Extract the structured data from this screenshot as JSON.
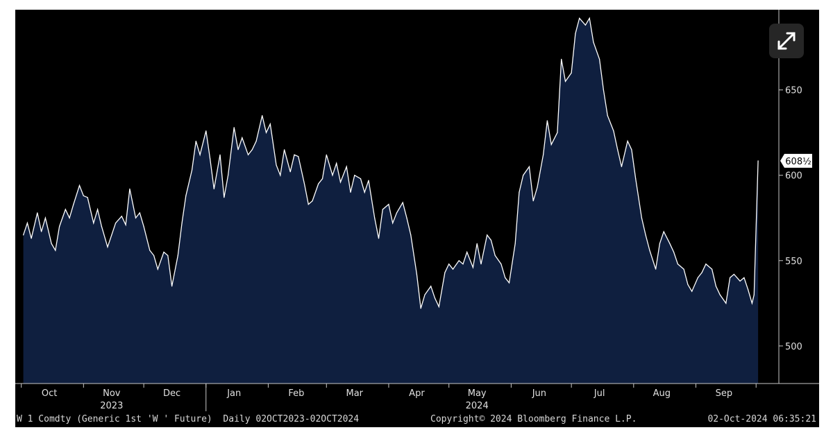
{
  "chart_data": {
    "type": "area",
    "title": "",
    "xlabel": "",
    "ylabel": "",
    "ylim": [
      478,
      697
    ],
    "yticks": [
      500,
      550,
      600,
      650
    ],
    "last_value_label": "608½",
    "x_labels": [
      {
        "label": "Oct",
        "date": "2023-10-15"
      },
      {
        "label": "Nov",
        "date": "2023-11-15"
      },
      {
        "label": "Dec",
        "date": "2023-12-15"
      },
      {
        "label": "Jan",
        "date": "2024-01-15"
      },
      {
        "label": "Feb",
        "date": "2024-02-15"
      },
      {
        "label": "Mar",
        "date": "2024-03-15"
      },
      {
        "label": "Apr",
        "date": "2024-04-15"
      },
      {
        "label": "May",
        "date": "2024-05-15"
      },
      {
        "label": "Jun",
        "date": "2024-06-15"
      },
      {
        "label": "Jul",
        "date": "2024-07-15"
      },
      {
        "label": "Aug",
        "date": "2024-08-15"
      },
      {
        "label": "Sep",
        "date": "2024-09-15"
      }
    ],
    "year_labels": [
      {
        "label": "2023",
        "date": "2023-11-15"
      },
      {
        "label": "2024",
        "date": "2024-05-15"
      }
    ],
    "series": [
      {
        "values": [
          [
            "2023-10-02",
            565
          ],
          [
            "2023-10-04",
            572
          ],
          [
            "2023-10-06",
            563
          ],
          [
            "2023-10-09",
            578
          ],
          [
            "2023-10-11",
            567
          ],
          [
            "2023-10-13",
            575
          ],
          [
            "2023-10-16",
            560
          ],
          [
            "2023-10-18",
            556
          ],
          [
            "2023-10-20",
            570
          ],
          [
            "2023-10-23",
            580
          ],
          [
            "2023-10-25",
            575
          ],
          [
            "2023-10-27",
            583
          ],
          [
            "2023-10-30",
            594
          ],
          [
            "2023-11-01",
            588
          ],
          [
            "2023-11-03",
            587
          ],
          [
            "2023-11-06",
            572
          ],
          [
            "2023-11-08",
            580
          ],
          [
            "2023-11-10",
            570
          ],
          [
            "2023-11-13",
            558
          ],
          [
            "2023-11-15",
            565
          ],
          [
            "2023-11-17",
            572
          ],
          [
            "2023-11-20",
            576
          ],
          [
            "2023-11-22",
            571
          ],
          [
            "2023-11-24",
            592
          ],
          [
            "2023-11-27",
            575
          ],
          [
            "2023-11-29",
            578
          ],
          [
            "2023-12-01",
            570
          ],
          [
            "2023-12-04",
            556
          ],
          [
            "2023-12-06",
            553
          ],
          [
            "2023-12-08",
            545
          ],
          [
            "2023-12-11",
            555
          ],
          [
            "2023-12-13",
            553
          ],
          [
            "2023-12-15",
            535
          ],
          [
            "2023-12-18",
            553
          ],
          [
            "2023-12-20",
            572
          ],
          [
            "2023-12-22",
            588
          ],
          [
            "2023-12-25",
            603
          ],
          [
            "2023-12-27",
            620
          ],
          [
            "2023-12-29",
            612
          ],
          [
            "2024-01-01",
            626
          ],
          [
            "2024-01-03",
            610
          ],
          [
            "2024-01-05",
            592
          ],
          [
            "2024-01-08",
            612
          ],
          [
            "2024-01-10",
            587
          ],
          [
            "2024-01-12",
            600
          ],
          [
            "2024-01-15",
            628
          ],
          [
            "2024-01-17",
            615
          ],
          [
            "2024-01-19",
            622
          ],
          [
            "2024-01-22",
            612
          ],
          [
            "2024-01-24",
            615
          ],
          [
            "2024-01-26",
            620
          ],
          [
            "2024-01-29",
            635
          ],
          [
            "2024-01-31",
            625
          ],
          [
            "2024-02-02",
            630
          ],
          [
            "2024-02-05",
            606
          ],
          [
            "2024-02-07",
            600
          ],
          [
            "2024-02-09",
            615
          ],
          [
            "2024-02-12",
            602
          ],
          [
            "2024-02-14",
            612
          ],
          [
            "2024-02-16",
            611
          ],
          [
            "2024-02-19",
            595
          ],
          [
            "2024-02-21",
            583
          ],
          [
            "2024-02-23",
            585
          ],
          [
            "2024-02-26",
            595
          ],
          [
            "2024-02-28",
            598
          ],
          [
            "2024-03-01",
            612
          ],
          [
            "2024-03-04",
            600
          ],
          [
            "2024-03-06",
            607
          ],
          [
            "2024-03-08",
            596
          ],
          [
            "2024-03-11",
            605
          ],
          [
            "2024-03-13",
            590
          ],
          [
            "2024-03-15",
            600
          ],
          [
            "2024-03-18",
            598
          ],
          [
            "2024-03-20",
            590
          ],
          [
            "2024-03-22",
            597
          ],
          [
            "2024-03-25",
            575
          ],
          [
            "2024-03-27",
            563
          ],
          [
            "2024-03-29",
            580
          ],
          [
            "2024-04-01",
            583
          ],
          [
            "2024-04-03",
            572
          ],
          [
            "2024-04-05",
            578
          ],
          [
            "2024-04-08",
            584
          ],
          [
            "2024-04-10",
            575
          ],
          [
            "2024-04-12",
            565
          ],
          [
            "2024-04-15",
            542
          ],
          [
            "2024-04-17",
            522
          ],
          [
            "2024-04-19",
            530
          ],
          [
            "2024-04-22",
            535
          ],
          [
            "2024-04-24",
            528
          ],
          [
            "2024-04-26",
            523
          ],
          [
            "2024-04-29",
            543
          ],
          [
            "2024-05-01",
            548
          ],
          [
            "2024-05-03",
            545
          ],
          [
            "2024-05-06",
            550
          ],
          [
            "2024-05-08",
            548
          ],
          [
            "2024-05-10",
            555
          ],
          [
            "2024-05-13",
            546
          ],
          [
            "2024-05-15",
            560
          ],
          [
            "2024-05-17",
            548
          ],
          [
            "2024-05-20",
            565
          ],
          [
            "2024-05-22",
            562
          ],
          [
            "2024-05-24",
            553
          ],
          [
            "2024-05-27",
            548
          ],
          [
            "2024-05-29",
            540
          ],
          [
            "2024-05-31",
            537
          ],
          [
            "2024-06-03",
            560
          ],
          [
            "2024-06-05",
            590
          ],
          [
            "2024-06-07",
            600
          ],
          [
            "2024-06-10",
            605
          ],
          [
            "2024-06-12",
            585
          ],
          [
            "2024-06-14",
            593
          ],
          [
            "2024-06-17",
            612
          ],
          [
            "2024-06-19",
            632
          ],
          [
            "2024-06-21",
            618
          ],
          [
            "2024-06-24",
            625
          ],
          [
            "2024-06-26",
            668
          ],
          [
            "2024-06-28",
            655
          ],
          [
            "2024-07-01",
            660
          ],
          [
            "2024-07-03",
            683
          ],
          [
            "2024-07-05",
            692
          ],
          [
            "2024-07-08",
            688
          ],
          [
            "2024-07-10",
            692
          ],
          [
            "2024-07-12",
            678
          ],
          [
            "2024-07-15",
            668
          ],
          [
            "2024-07-17",
            650
          ],
          [
            "2024-07-19",
            635
          ],
          [
            "2024-07-22",
            626
          ],
          [
            "2024-07-24",
            615
          ],
          [
            "2024-07-26",
            605
          ],
          [
            "2024-07-29",
            620
          ],
          [
            "2024-07-31",
            615
          ],
          [
            "2024-08-02",
            598
          ],
          [
            "2024-08-05",
            575
          ],
          [
            "2024-08-07",
            565
          ],
          [
            "2024-08-09",
            556
          ],
          [
            "2024-08-12",
            545
          ],
          [
            "2024-08-14",
            560
          ],
          [
            "2024-08-16",
            567
          ],
          [
            "2024-08-19",
            560
          ],
          [
            "2024-08-21",
            555
          ],
          [
            "2024-08-23",
            548
          ],
          [
            "2024-08-26",
            545
          ],
          [
            "2024-08-28",
            536
          ],
          [
            "2024-08-30",
            532
          ],
          [
            "2024-09-02",
            540
          ],
          [
            "2024-09-04",
            543
          ],
          [
            "2024-09-06",
            548
          ],
          [
            "2024-09-09",
            545
          ],
          [
            "2024-09-11",
            535
          ],
          [
            "2024-09-13",
            530
          ],
          [
            "2024-09-16",
            525
          ],
          [
            "2024-09-18",
            540
          ],
          [
            "2024-09-20",
            542
          ],
          [
            "2024-09-23",
            538
          ],
          [
            "2024-09-25",
            540
          ],
          [
            "2024-09-27",
            533
          ],
          [
            "2024-09-29",
            525
          ],
          [
            "2024-09-30",
            530
          ],
          [
            "2024-10-02",
            608.5
          ]
        ]
      }
    ],
    "colors": {
      "background": "#000000",
      "area_fill": "#0f1f3f",
      "line": "#ffffff",
      "axis": "#c8c8c8",
      "tick_text": "#e0e0e0",
      "value_box": "#ffffff",
      "value_text": "#000000"
    }
  },
  "ui": {
    "expand_icon": "expand-arrows-icon"
  },
  "footer": {
    "left": "W 1 Comdty (Generic 1st 'W ' Future)  Daily 02OCT2023-02OCT2024",
    "middle": "Copyright© 2024 Bloomberg Finance L.P.",
    "right": "02-Oct-2024 06:35:21"
  }
}
